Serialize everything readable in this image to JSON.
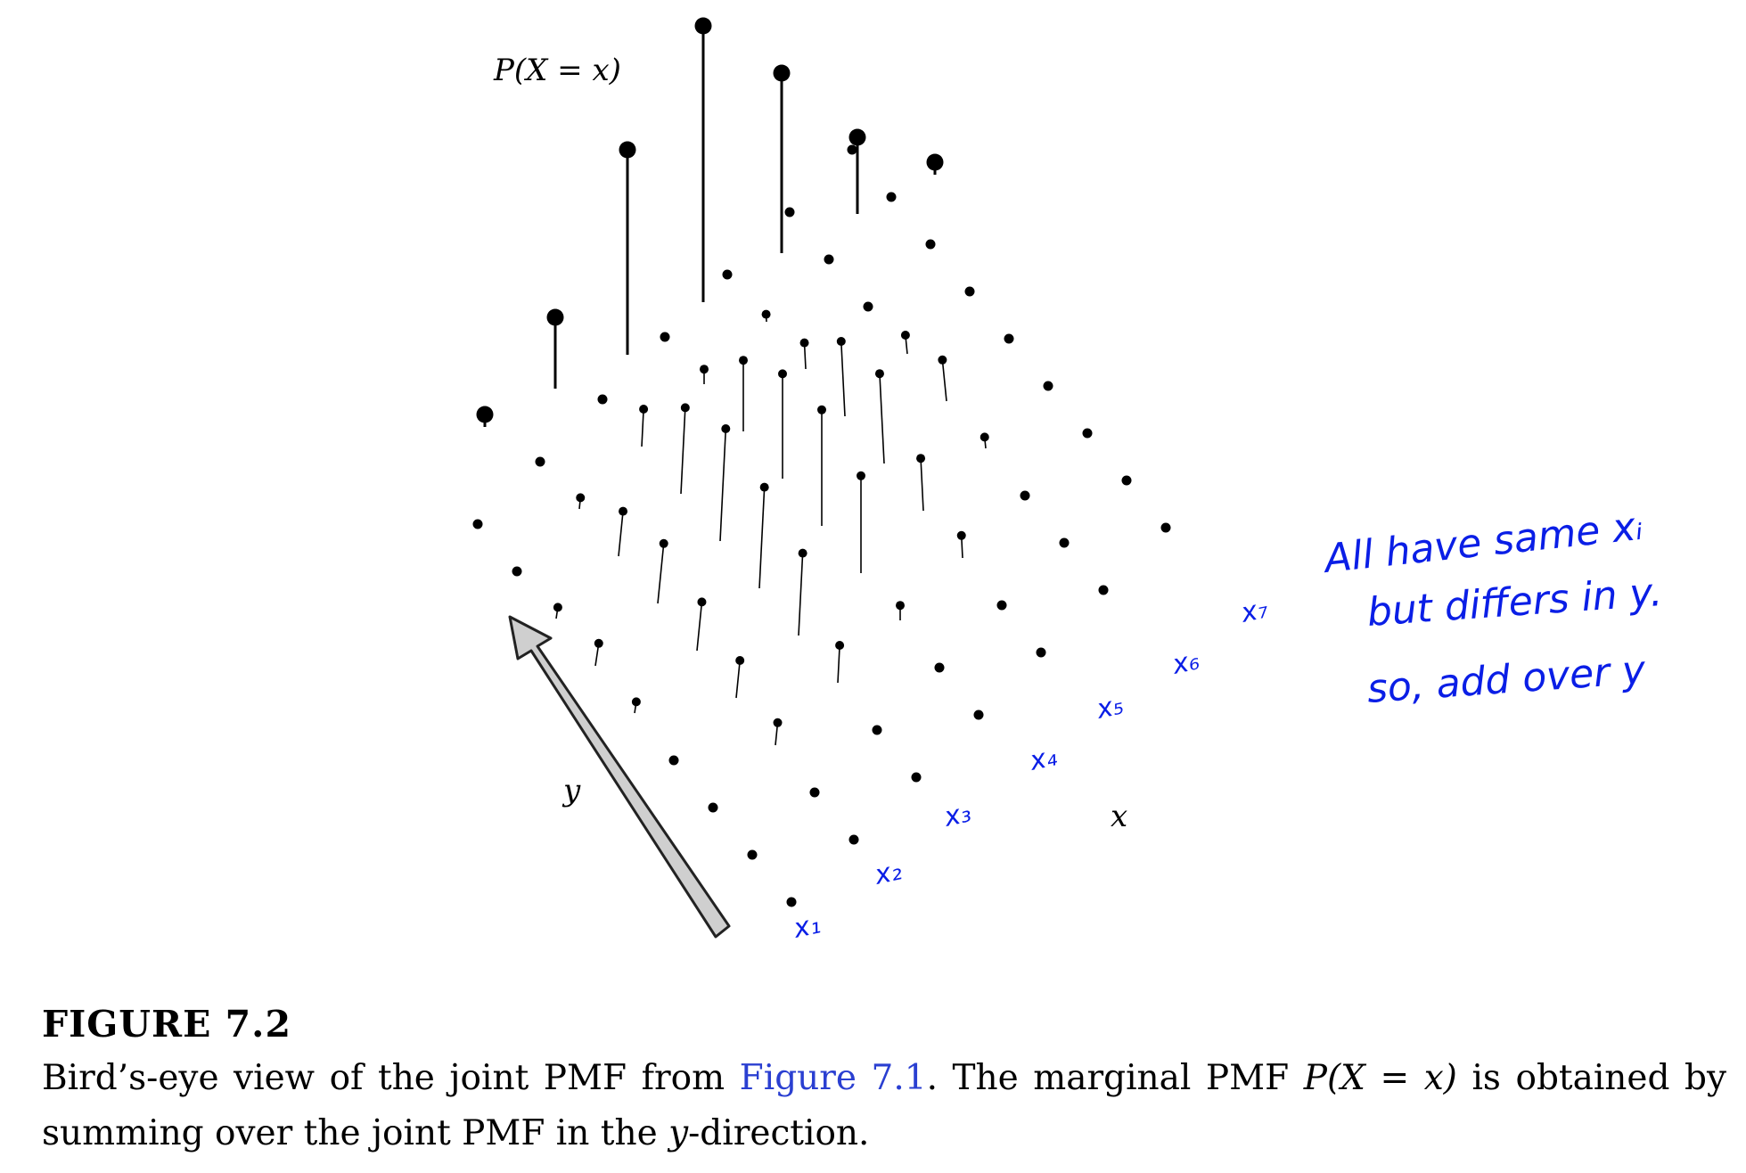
{
  "figure": {
    "axis_labels": {
      "top": "P(X = x)",
      "y": "y",
      "x": "x"
    },
    "annotations": {
      "x_tags": [
        "x₁",
        "x₂",
        "x₃",
        "x₄",
        "x₅",
        "x₆",
        "x₇"
      ],
      "note_lines": [
        "All have same xᵢ",
        "but differs in y.",
        "so, add over y"
      ]
    },
    "colors": {
      "ink": "#000000",
      "annotation": "#0a1ee6",
      "arrow_fill": "#cfcfcf"
    }
  },
  "caption": {
    "label": "FIGURE 7.2",
    "part1": "Bird’s-eye view of the joint PMF from ",
    "link": "Figure 7.1",
    "part2": ". The marginal PMF ",
    "formula": "P(X = x)",
    "part3": " is obtained by summing over the joint PMF in the ",
    "var": "y",
    "part4": "-direction."
  }
}
